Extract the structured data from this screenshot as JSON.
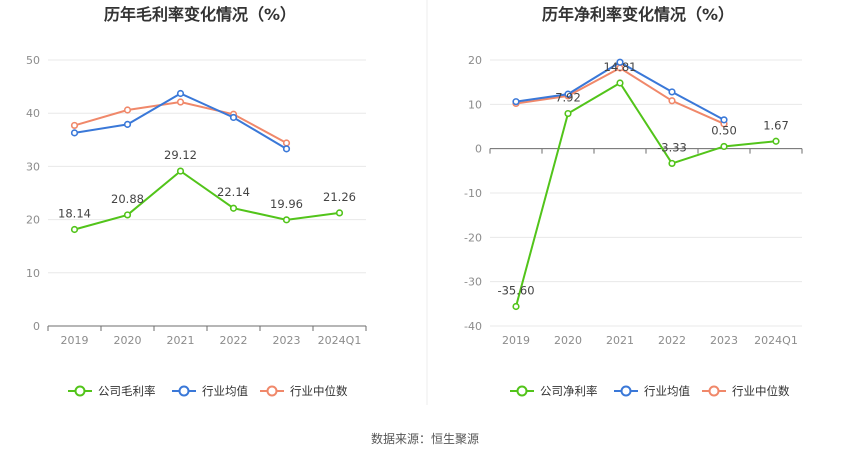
{
  "source": "数据来源：恒生聚源",
  "colors": {
    "company": "#52c41a",
    "industry_avg": "#3a78d8",
    "industry_median": "#f0886a",
    "grid": "#e8e8e8",
    "axis": "#cccccc"
  },
  "chart_data": [
    {
      "type": "line",
      "title": "历年毛利率变化情况（%）",
      "categories": [
        "2019",
        "2020",
        "2021",
        "2022",
        "2023",
        "2024Q1"
      ],
      "ylim": [
        0,
        50
      ],
      "yticks": [
        0,
        10,
        20,
        30,
        40,
        50
      ],
      "legend_position": "bottom",
      "series": [
        {
          "name": "公司毛利率",
          "color": "#52c41a",
          "values": [
            18.14,
            20.88,
            29.12,
            22.14,
            19.96,
            21.26
          ],
          "labels": [
            "18.14",
            "20.88",
            "29.12",
            "22.14",
            "19.96",
            "21.26"
          ]
        },
        {
          "name": "行业均值",
          "color": "#3a78d8",
          "values": [
            36.3,
            37.9,
            43.7,
            39.2,
            33.3,
            null
          ]
        },
        {
          "name": "行业中位数",
          "color": "#f0886a",
          "values": [
            37.7,
            40.6,
            42.1,
            39.8,
            34.4,
            null
          ]
        }
      ]
    },
    {
      "type": "line",
      "title": "历年净利率变化情况（%）",
      "categories": [
        "2019",
        "2020",
        "2021",
        "2022",
        "2023",
        "2024Q1"
      ],
      "ylim": [
        -40,
        20
      ],
      "yticks": [
        -40,
        -30,
        -20,
        -10,
        0,
        10,
        20
      ],
      "legend_position": "bottom",
      "series": [
        {
          "name": "公司净利率",
          "color": "#52c41a",
          "values": [
            -35.6,
            7.92,
            14.81,
            -3.33,
            0.5,
            1.67
          ],
          "labels": [
            "-35.60",
            "7.92",
            "14.81",
            "-3.33",
            "0.50",
            "1.67"
          ]
        },
        {
          "name": "行业均值",
          "color": "#3a78d8",
          "values": [
            10.6,
            12.3,
            19.5,
            12.8,
            6.5,
            null
          ]
        },
        {
          "name": "行业中位数",
          "color": "#f0886a",
          "values": [
            10.2,
            11.9,
            18.2,
            10.8,
            5.6,
            null
          ]
        }
      ]
    }
  ]
}
